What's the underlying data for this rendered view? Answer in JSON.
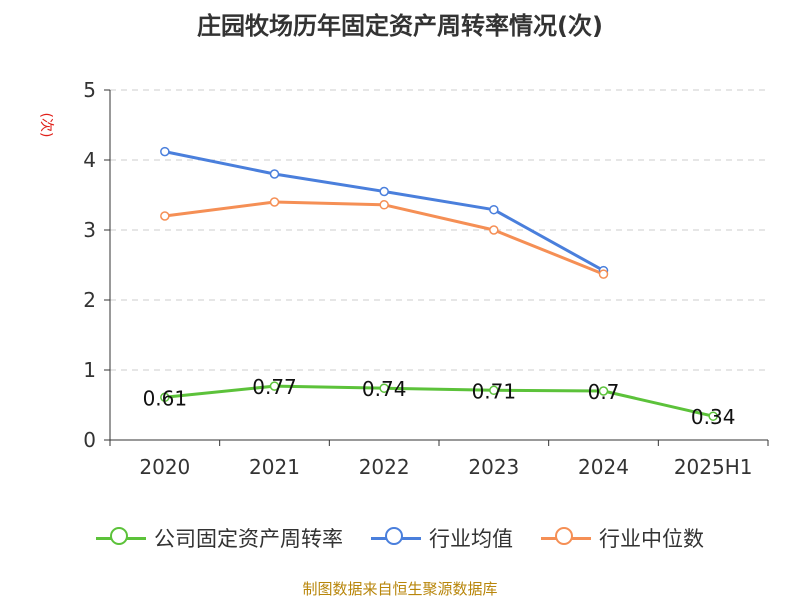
{
  "title": "庄园牧场历年固定资产周转率情况(次)",
  "source": "制图数据来自恒生聚源数据库",
  "chart_data": {
    "type": "line",
    "title": "庄园牧场历年固定资产周转率情况(次)",
    "ylabel": "(次)",
    "xlabel": "",
    "categories": [
      "2020",
      "2021",
      "2022",
      "2023",
      "2024",
      "2025H1"
    ],
    "ylim": [
      0,
      5
    ],
    "yticks": [
      0,
      1,
      2,
      3,
      4,
      5
    ],
    "grid": true,
    "legend_position": "bottom",
    "series": [
      {
        "name": "公司固定资产周转率",
        "color": "#5cc23a",
        "values": [
          0.61,
          0.77,
          0.74,
          0.71,
          0.7,
          0.34
        ],
        "labels": [
          "0.61",
          "0.77",
          "0.74",
          "0.71",
          "0.7",
          "0.34"
        ]
      },
      {
        "name": "行业均值",
        "color": "#4a7fdc",
        "values": [
          4.12,
          3.8,
          3.55,
          3.29,
          2.42,
          null
        ]
      },
      {
        "name": "行业中位数",
        "color": "#f58f55",
        "values": [
          3.2,
          3.4,
          3.36,
          3.0,
          2.37,
          null
        ]
      }
    ]
  }
}
